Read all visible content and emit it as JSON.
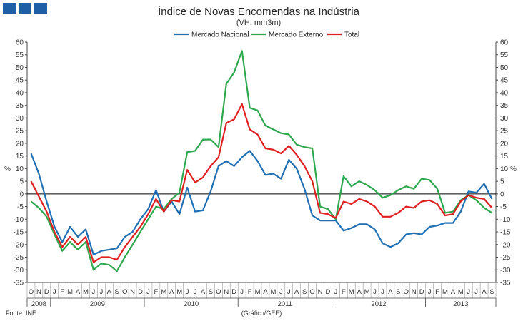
{
  "chart_data": {
    "type": "line",
    "title": "Índice de Novas Encomendas na Indústria",
    "subtitle": "(VH, mm3m)",
    "ylabel_left": "%",
    "ylabel_right": "%",
    "ylim": [
      -35,
      60
    ],
    "yticks": [
      60,
      55,
      50,
      45,
      40,
      35,
      30,
      25,
      20,
      15,
      10,
      5,
      0,
      -5,
      -10,
      -15,
      -20,
      -25,
      -30,
      -35
    ],
    "months": [
      "O",
      "N",
      "D",
      "J",
      "F",
      "M",
      "A",
      "M",
      "J",
      "J",
      "A",
      "S",
      "O",
      "N",
      "D",
      "J",
      "F",
      "M",
      "A",
      "M",
      "J",
      "J",
      "A",
      "S",
      "O",
      "N",
      "D",
      "J",
      "F",
      "M",
      "A",
      "M",
      "J",
      "J",
      "A",
      "S",
      "O",
      "N",
      "D",
      "J",
      "F",
      "M",
      "A",
      "M",
      "J",
      "J",
      "A",
      "S",
      "O",
      "N",
      "D",
      "J",
      "F",
      "M",
      "A",
      "M",
      "J",
      "J",
      "A",
      "S"
    ],
    "years": [
      {
        "label": "2008",
        "start": 0,
        "count": 3
      },
      {
        "label": "2009",
        "start": 3,
        "count": 12
      },
      {
        "label": "2010",
        "start": 15,
        "count": 12
      },
      {
        "label": "2011",
        "start": 27,
        "count": 12
      },
      {
        "label": "2012",
        "start": 39,
        "count": 12
      },
      {
        "label": "2013",
        "start": 51,
        "count": 9
      }
    ],
    "series": [
      {
        "name": "Mercado Nacional",
        "color": "#1f6fb4",
        "values": [
          16,
          8,
          -3,
          -13,
          -19,
          -13,
          -17,
          -14,
          -24,
          -22.5,
          -22,
          -21.5,
          -17,
          -15,
          -10,
          -6,
          1.5,
          -7,
          -3,
          -8,
          2.5,
          -7,
          -6.5,
          1,
          11,
          13,
          11,
          14.5,
          17,
          13,
          7.5,
          8,
          6,
          13.5,
          10,
          2,
          -8.5,
          -10.5,
          -10.5,
          -10.5,
          -14.5,
          -13.5,
          -12,
          -12,
          -14,
          -19.5,
          -21,
          -19.5,
          -16,
          -15.5,
          -16,
          -13,
          -12.5,
          -11.5,
          -11.5,
          -7,
          1,
          0.5,
          4,
          -2
        ]
      },
      {
        "name": "Mercado Externo",
        "color": "#2ea84e",
        "values": [
          -3,
          -5.5,
          -9,
          -16,
          -22.5,
          -19,
          -22,
          -19,
          -30,
          -27.5,
          -28,
          -30.5,
          -25,
          -20,
          -15,
          -10,
          -5,
          -6,
          -2,
          0.5,
          16.5,
          17,
          21.5,
          21.5,
          18.5,
          43.5,
          48,
          56.5,
          34,
          33,
          27,
          25.5,
          24,
          23.5,
          19.5,
          18.5,
          18,
          -5,
          -6,
          -10,
          7,
          3,
          5,
          3.5,
          1.5,
          -1.5,
          -0.5,
          1.5,
          3,
          2,
          6,
          5.5,
          2,
          -7.5,
          -7,
          -2.5,
          -0.5,
          -2.5,
          -5.5,
          -7.5
        ]
      },
      {
        "name": "Total",
        "color": "#e02020",
        "values": [
          5,
          -1,
          -7,
          -15,
          -21,
          -17,
          -20,
          -17,
          -27,
          -25,
          -25,
          -26,
          -21,
          -17,
          -13,
          -8,
          -2,
          -7,
          -2.5,
          -3,
          9.5,
          4.5,
          6.5,
          11,
          14.5,
          28,
          29.5,
          35.5,
          25.5,
          23.5,
          18,
          17.5,
          16,
          19,
          15.5,
          11,
          5,
          -7.5,
          -8,
          -9.5,
          -3,
          -4,
          -2,
          -3,
          -5,
          -9,
          -9,
          -7.5,
          -5,
          -5.5,
          -3,
          -2.5,
          -4,
          -8.5,
          -8,
          -3,
          -0.5,
          -1.5,
          -2,
          -5.5
        ]
      }
    ],
    "source": "Fonte: INE",
    "credit": "(Gráfico/GEE)"
  }
}
